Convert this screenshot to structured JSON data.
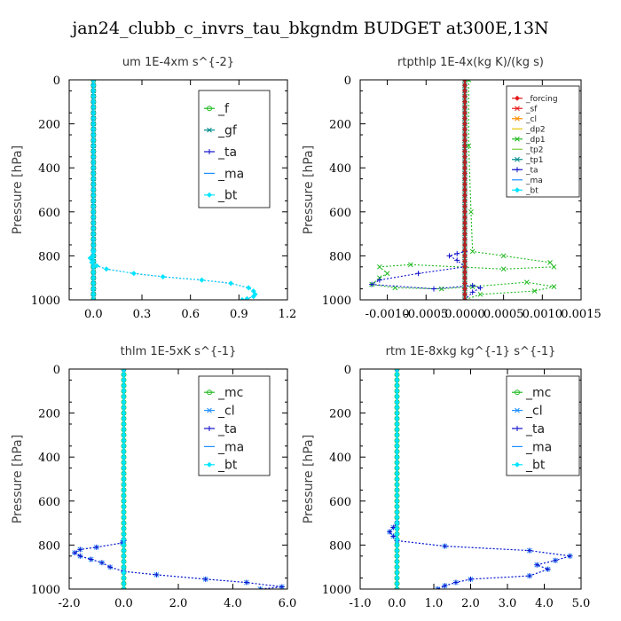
{
  "title": "jan24_clubb_c_invrs_tau_bkgndm  BUDGET at300E,13N",
  "colors": {
    "green": "#22bb22",
    "teal": "#008b8b",
    "blue": "#1111cc",
    "cyan": "#00e5ff",
    "sky": "#1e90ff",
    "red": "#e41a1c",
    "orange": "#ff8c00",
    "yellow": "#e6c800",
    "lightgreen": "#7ccd3c",
    "darkred": "#b22222"
  },
  "chart_data": [
    {
      "type": "line",
      "title": "um   1E-4xm s^{-2}",
      "ylabel": "Pressure [hPa]",
      "xlim": [
        -0.15,
        1.2
      ],
      "ylim": [
        1000,
        0
      ],
      "xticks": [
        "0.0",
        "0.3",
        "0.6",
        "0.9",
        "1.2"
      ],
      "xtick_values": [
        0,
        0.3,
        0.6,
        0.9,
        1.2
      ],
      "yticks": [
        "0",
        "200",
        "400",
        "600",
        "800",
        "1000"
      ],
      "ytick_values": [
        0,
        200,
        400,
        600,
        800,
        1000
      ],
      "legend": "upper-right",
      "series": [
        {
          "name": "_f",
          "color": "green",
          "marker": "o",
          "x": [
            0,
            0
          ],
          "y": [
            0,
            1000
          ]
        },
        {
          "name": "_gf",
          "color": "teal",
          "marker": "x",
          "x": [
            0,
            0
          ],
          "y": [
            0,
            1000
          ]
        },
        {
          "name": "_ta",
          "color": "blue",
          "marker": "+",
          "x": [
            0,
            0
          ],
          "y": [
            0,
            1000
          ]
        },
        {
          "name": "_ma",
          "color": "sky",
          "marker": "-",
          "x": [
            0,
            0
          ],
          "y": [
            0,
            1000
          ]
        },
        {
          "name": "_bt",
          "color": "cyan",
          "marker": "d",
          "x": [
            0,
            0
          ],
          "y": [
            0,
            1000
          ]
        },
        {
          "name": "",
          "color": "blue",
          "marker": "dot",
          "x": [
            0,
            0,
            -0.02,
            -0.01,
            0.02,
            0.08,
            0.25,
            0.43,
            0.67,
            0.85,
            0.96,
            0.99,
            1.0,
            0.99,
            0.95,
            0.92
          ],
          "y": [
            0,
            780,
            810,
            830,
            845,
            860,
            880,
            895,
            910,
            925,
            945,
            960,
            975,
            985,
            995,
            1000
          ]
        },
        {
          "name": "",
          "color": "cyan",
          "marker": "d",
          "x": [
            0,
            0,
            -0.02,
            -0.01,
            0.02,
            0.08,
            0.25,
            0.43,
            0.67,
            0.85,
            0.96,
            0.99,
            1.0,
            0.99,
            0.95,
            0.92
          ],
          "y": [
            0,
            780,
            810,
            830,
            845,
            860,
            880,
            895,
            910,
            925,
            945,
            960,
            975,
            985,
            995,
            1000
          ]
        }
      ]
    },
    {
      "type": "line",
      "title": "rtpthlp   1E-4x(kg K)/(kg s)",
      "ylabel": "Pressure [hPa]",
      "xlim": [
        -0.00135,
        0.0015
      ],
      "ylim": [
        1000,
        0
      ],
      "xticks": [
        "-0.0010",
        "-0.0005",
        "0.0000",
        "0.0005",
        "0.0010",
        "0.0015"
      ],
      "xtick_values": [
        -0.001,
        -0.0005,
        0,
        0.0005,
        0.001,
        0.0015
      ],
      "yticks": [
        "0",
        "200",
        "400",
        "600",
        "800",
        "1000"
      ],
      "ytick_values": [
        0,
        200,
        400,
        600,
        800,
        1000
      ],
      "legend": "upper-right",
      "series": [
        {
          "name": "_forcing",
          "color": "red",
          "marker": "d",
          "x": [
            0,
            0
          ],
          "y": [
            0,
            1000
          ]
        },
        {
          "name": "_sf",
          "color": "red",
          "marker": "x",
          "x": [
            0,
            0
          ],
          "y": [
            0,
            1000
          ]
        },
        {
          "name": "_cl",
          "color": "orange",
          "marker": "x",
          "x": [
            0,
            0
          ],
          "y": [
            0,
            1000
          ]
        },
        {
          "name": "_dp2",
          "color": "yellow",
          "marker": "-",
          "x": [
            0,
            0
          ],
          "y": [
            0,
            1000
          ]
        },
        {
          "name": "_dp1",
          "color": "green",
          "marker": "x",
          "x": [
            5e-05,
            5e-05,
            8e-05,
            0.0001,
            0.0005,
            0.0011,
            0.00115,
            0.0005,
            -0.0007,
            -0.0011,
            -0.001,
            -0.0011,
            -0.0012,
            -0.0009,
            -0.0003,
            0.0001,
            0.0008,
            0.00115,
            0.0009,
            0.0002,
            0.0
          ],
          "y": [
            0,
            300,
            600,
            780,
            800,
            830,
            850,
            860,
            840,
            850,
            880,
            900,
            930,
            945,
            950,
            940,
            920,
            940,
            960,
            975,
            1000
          ]
        },
        {
          "name": "_tp2",
          "color": "lightgreen",
          "marker": "-",
          "x": [
            0,
            0
          ],
          "y": [
            0,
            1000
          ]
        },
        {
          "name": "_tp1",
          "color": "teal",
          "marker": "x",
          "x": [
            0,
            0
          ],
          "y": [
            0,
            1000
          ]
        },
        {
          "name": "_ta",
          "color": "blue",
          "marker": "+",
          "x": [
            0,
            0,
            -0.0001,
            -0.0002,
            -0.0001,
            0,
            -0.0006,
            -0.0011,
            -0.0012,
            -0.0004,
            0.0001,
            0.0002,
            0.0001,
            0
          ],
          "y": [
            0,
            780,
            790,
            800,
            820,
            850,
            880,
            910,
            930,
            950,
            935,
            945,
            965,
            1000
          ]
        },
        {
          "name": "_ma",
          "color": "sky",
          "marker": "-",
          "x": [
            0,
            0
          ],
          "y": [
            0,
            1000
          ]
        },
        {
          "name": "_bt",
          "color": "cyan",
          "marker": "d",
          "x": [
            0,
            0
          ],
          "y": [
            0,
            1000
          ]
        },
        {
          "name": "",
          "color": "darkred",
          "marker": "d",
          "x": [
            0,
            0
          ],
          "y": [
            0,
            1000
          ]
        }
      ]
    },
    {
      "type": "line",
      "title": "thlm   1E-5xK s^{-1}",
      "ylabel": "Pressure [hPa]",
      "xlim": [
        -2.0,
        6.0
      ],
      "ylim": [
        1000,
        0
      ],
      "xticks": [
        "-2.0",
        "0.0",
        "2.0",
        "4.0",
        "6.0"
      ],
      "xtick_values": [
        -2,
        0,
        2,
        4,
        6
      ],
      "yticks": [
        "0",
        "200",
        "400",
        "600",
        "800",
        "1000"
      ],
      "ytick_values": [
        0,
        200,
        400,
        600,
        800,
        1000
      ],
      "legend": "upper-right",
      "series": [
        {
          "name": "_mc",
          "color": "green",
          "marker": "o",
          "x": [
            0,
            0
          ],
          "y": [
            0,
            1000
          ]
        },
        {
          "name": "_cl",
          "color": "sky",
          "marker": "x",
          "x": [
            0,
            0,
            -0.05,
            -1.0,
            -1.6,
            -1.8,
            -1.6,
            -1.2,
            -0.8,
            -0.5,
            0.0,
            1.2,
            3.0,
            4.5,
            5.8,
            5.0
          ],
          "y": [
            0,
            780,
            790,
            810,
            820,
            835,
            850,
            865,
            880,
            900,
            920,
            935,
            955,
            970,
            990,
            1000
          ]
        },
        {
          "name": "_ta",
          "color": "blue",
          "marker": "+",
          "x": [
            0,
            0,
            -0.05,
            -1.0,
            -1.6,
            -1.8,
            -1.6,
            -1.2,
            -0.8,
            -0.5,
            0.0,
            1.2,
            3.0,
            4.5,
            5.8,
            5.0,
            0.0
          ],
          "y": [
            0,
            780,
            790,
            810,
            820,
            835,
            850,
            865,
            880,
            900,
            920,
            935,
            955,
            970,
            990,
            1000,
            1000
          ]
        },
        {
          "name": "_ma",
          "color": "sky",
          "marker": "-",
          "x": [
            0,
            0
          ],
          "y": [
            0,
            1000
          ]
        },
        {
          "name": "_bt",
          "color": "cyan",
          "marker": "d",
          "x": [
            0,
            0
          ],
          "y": [
            0,
            1000
          ]
        }
      ]
    },
    {
      "type": "line",
      "title": "rtm   1E-8xkg kg^{-1} s^{-1}",
      "ylabel": "Pressure [hPa]",
      "xlim": [
        -1.0,
        5.0
      ],
      "ylim": [
        1000,
        0
      ],
      "xticks": [
        "-1.0",
        "0.0",
        "1.0",
        "2.0",
        "3.0",
        "4.0",
        "5.0"
      ],
      "xtick_values": [
        -1,
        0,
        1,
        2,
        3,
        4,
        5
      ],
      "yticks": [
        "0",
        "200",
        "400",
        "600",
        "800",
        "1000"
      ],
      "ytick_values": [
        0,
        200,
        400,
        600,
        800,
        1000
      ],
      "legend": "upper-right",
      "series": [
        {
          "name": "_mc",
          "color": "green",
          "marker": "o",
          "x": [
            0,
            0
          ],
          "y": [
            0,
            1000
          ]
        },
        {
          "name": "_cl",
          "color": "sky",
          "marker": "x",
          "x": [
            0,
            0,
            -0.1,
            -0.2,
            -0.1,
            0.0,
            1.3,
            3.6,
            4.7,
            4.3,
            3.8,
            4.1,
            3.6,
            2.0,
            1.6,
            1.3,
            1.1
          ],
          "y": [
            0,
            700,
            720,
            740,
            760,
            780,
            805,
            825,
            850,
            870,
            890,
            910,
            940,
            955,
            970,
            985,
            1000
          ]
        },
        {
          "name": "_ta",
          "color": "blue",
          "marker": "+",
          "x": [
            0,
            0,
            -0.1,
            -0.2,
            -0.1,
            0.0,
            1.3,
            3.6,
            4.7,
            4.3,
            3.8,
            4.1,
            3.6,
            2.0,
            1.6,
            1.3,
            1.1,
            0.0
          ],
          "y": [
            0,
            700,
            720,
            740,
            760,
            780,
            805,
            825,
            850,
            870,
            890,
            910,
            940,
            955,
            970,
            985,
            1000,
            1000
          ]
        },
        {
          "name": "_ma",
          "color": "sky",
          "marker": "-",
          "x": [
            0,
            0
          ],
          "y": [
            0,
            1000
          ]
        },
        {
          "name": "_bt",
          "color": "cyan",
          "marker": "d",
          "x": [
            0,
            0
          ],
          "y": [
            0,
            1000
          ]
        }
      ]
    }
  ]
}
